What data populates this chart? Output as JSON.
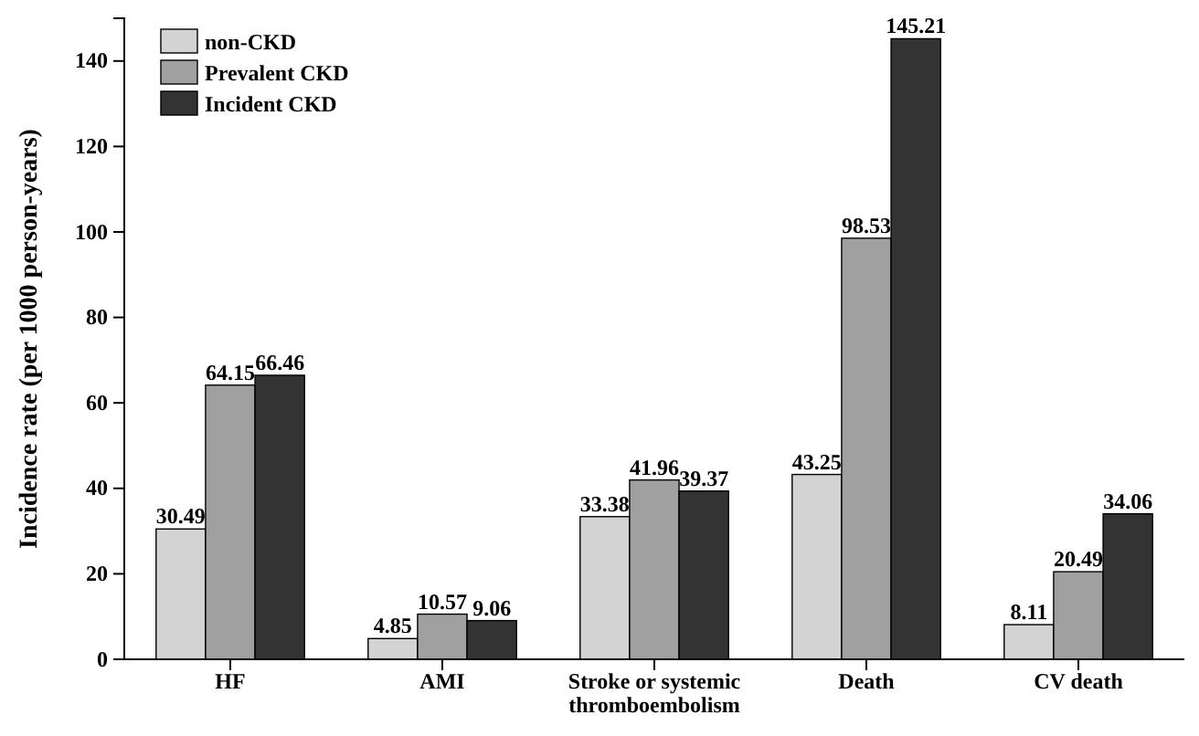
{
  "chart_data": {
    "type": "bar",
    "ylabel": "Incidence rate (per 1000 person-years)",
    "categories": [
      "HF",
      "AMI",
      "Stroke or systemic thromboembolism",
      "Death",
      "CV death"
    ],
    "series": [
      {
        "name": "non-CKD",
        "color": "#d3d3d3",
        "values": [
          30.49,
          4.85,
          33.38,
          43.25,
          8.11
        ]
      },
      {
        "name": "Prevalent CKD",
        "color": "#a0a0a0",
        "values": [
          64.15,
          10.57,
          41.96,
          98.53,
          20.49
        ]
      },
      {
        "name": "Incident CKD",
        "color": "#333333",
        "values": [
          66.46,
          9.06,
          39.37,
          145.21,
          34.06
        ]
      }
    ],
    "ylim": [
      0,
      150
    ],
    "yticks": [
      0,
      20,
      40,
      60,
      80,
      100,
      120,
      140
    ],
    "data_labels": true,
    "legend": "top left",
    "grid": false
  }
}
